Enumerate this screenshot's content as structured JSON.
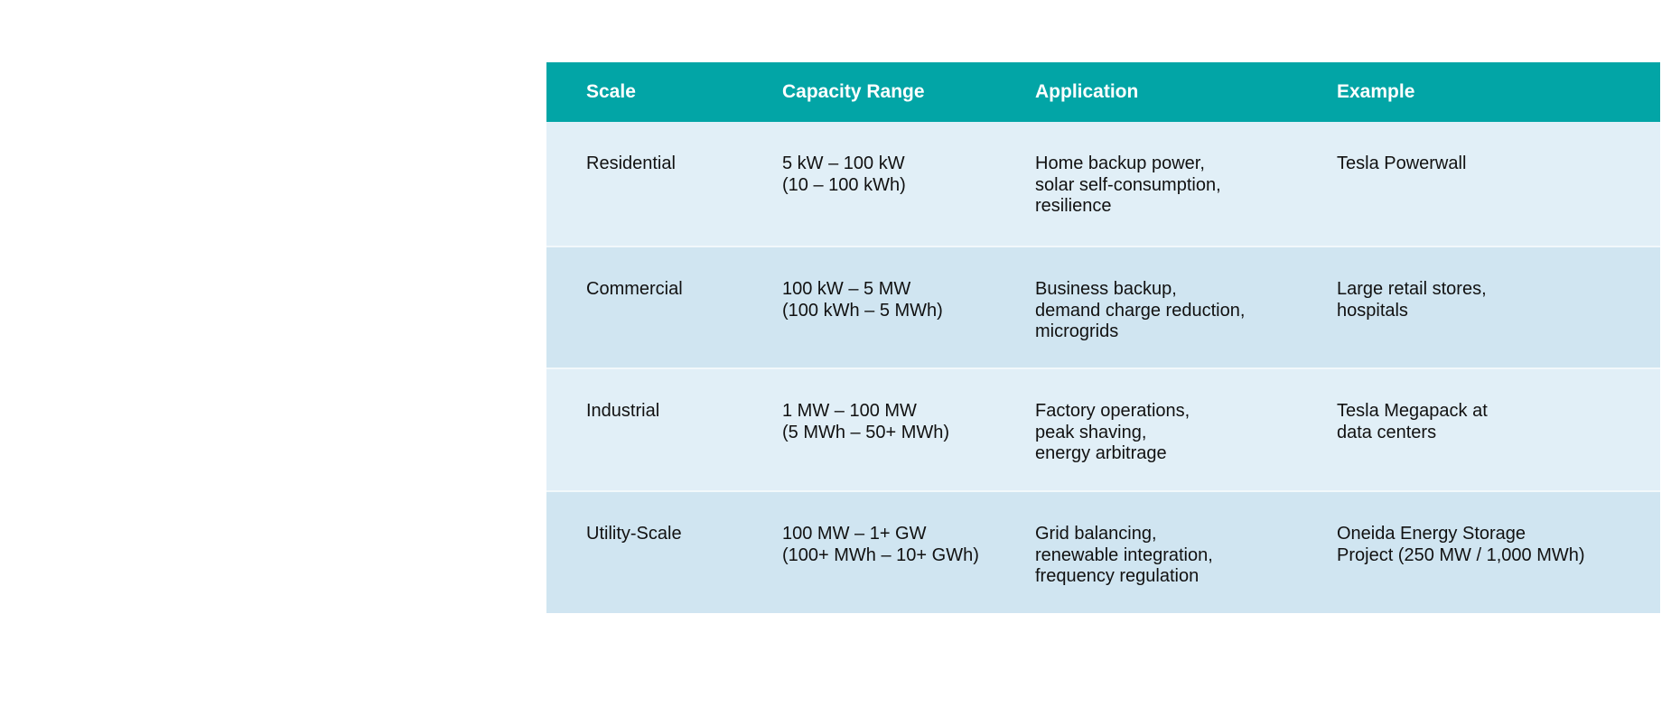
{
  "table": {
    "headers": [
      "Scale",
      "Capacity Range",
      "Application",
      "Example"
    ],
    "rows": [
      {
        "scale": "Residential",
        "capacity": "5 kW – 100 kW\n(10 – 100 kWh)",
        "application": "Home backup power,\nsolar self-consumption,\nresilience",
        "example": "Tesla Powerwall"
      },
      {
        "scale": "Commercial",
        "capacity": "100 kW – 5 MW\n(100 kWh – 5 MWh)",
        "application": "Business backup,\ndemand charge reduction,\nmicrogrids",
        "example": "Large retail stores,\nhospitals"
      },
      {
        "scale": "Industrial",
        "capacity": "1 MW – 100 MW\n(5 MWh – 50+ MWh)",
        "application": "Factory operations,\npeak shaving,\nenergy arbitrage",
        "example": "Tesla Megapack at\ndata centers"
      },
      {
        "scale": "Utility-Scale",
        "capacity": "100 MW – 1+ GW\n(100+ MWh – 10+ GWh)",
        "application": "Grid balancing,\nrenewable integration,\nfrequency regulation",
        "example": "Oneida Energy Storage\nProject (250 MW / 1,000 MWh)"
      }
    ]
  },
  "colors": {
    "header_bg": "#02a5a6",
    "row_light": "#e1eff7",
    "row_dark": "#d0e5f1"
  }
}
